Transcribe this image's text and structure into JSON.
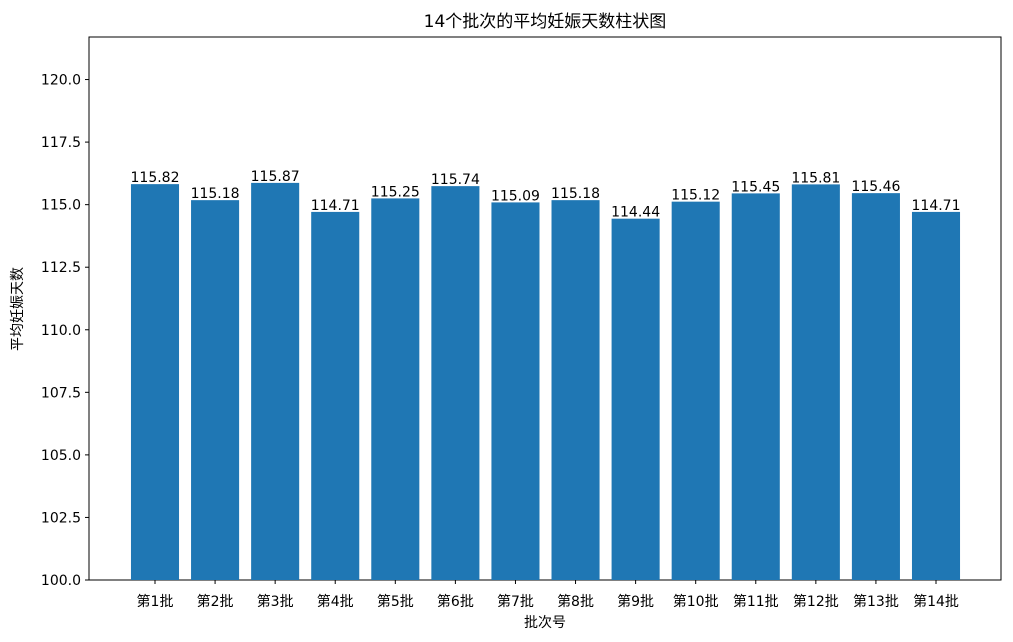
{
  "chart_data": {
    "type": "bar",
    "title": "14个批次的平均妊娠天数柱状图",
    "xlabel": "批次号",
    "ylabel": "平均妊娠天数",
    "categories": [
      "第1批",
      "第2批",
      "第3批",
      "第4批",
      "第5批",
      "第6批",
      "第7批",
      "第8批",
      "第9批",
      "第10批",
      "第11批",
      "第12批",
      "第13批",
      "第14批"
    ],
    "values": [
      115.82,
      115.18,
      115.87,
      114.71,
      115.25,
      115.74,
      115.09,
      115.18,
      114.44,
      115.12,
      115.45,
      115.81,
      115.46,
      114.71
    ],
    "value_labels": [
      "115.82",
      "115.18",
      "115.87",
      "114.71",
      "115.25",
      "115.74",
      "115.09",
      "115.18",
      "114.44",
      "115.12",
      "115.45",
      "115.81",
      "115.46",
      "114.71"
    ],
    "yticks": [
      "100.0",
      "102.5",
      "105.0",
      "107.5",
      "110.0",
      "112.5",
      "115.0",
      "117.5",
      "120.0"
    ],
    "ylim": [
      100,
      121.7
    ],
    "grid": false,
    "bar_color": "#1f77b4"
  }
}
